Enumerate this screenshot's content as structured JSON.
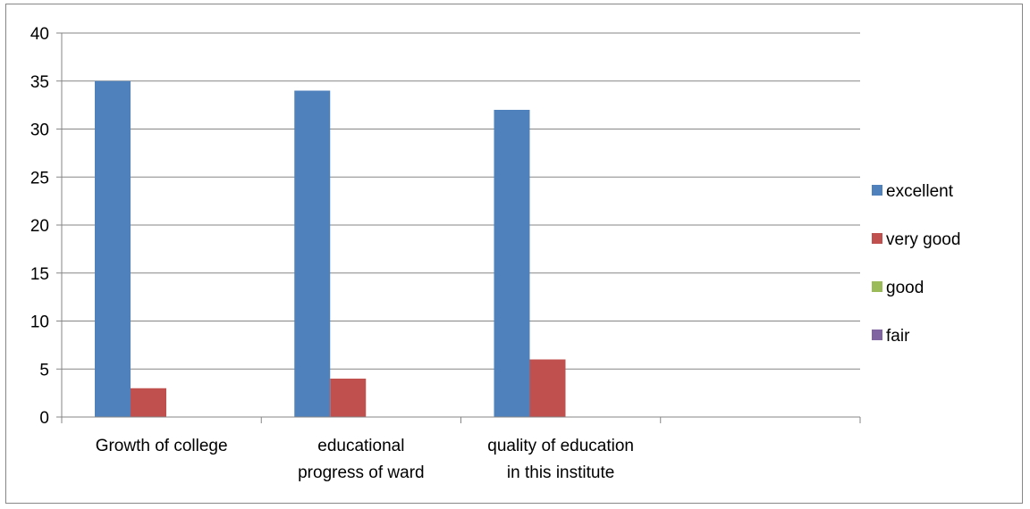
{
  "chart_data": {
    "type": "bar",
    "categories": [
      [
        "Growth of college"
      ],
      [
        "educational",
        "progress of ward"
      ],
      [
        "quality of education",
        "in this institute"
      ],
      [
        ""
      ]
    ],
    "series": [
      {
        "name": "excellent",
        "values": [
          35,
          34,
          32,
          0
        ],
        "color": "#4f81bd"
      },
      {
        "name": "very good",
        "values": [
          3,
          4,
          6,
          0
        ],
        "color": "#c0504d"
      },
      {
        "name": "good",
        "values": [
          0,
          0,
          0,
          0
        ],
        "color": "#9bbb59"
      },
      {
        "name": "fair",
        "values": [
          0,
          0,
          0,
          0
        ],
        "color": "#8064a2"
      }
    ],
    "ylim": [
      0,
      40
    ],
    "yticks": [
      0,
      5,
      10,
      15,
      20,
      25,
      30,
      35,
      40
    ],
    "grid": true,
    "legend": "right",
    "title": "",
    "xlabel": "",
    "ylabel": ""
  }
}
